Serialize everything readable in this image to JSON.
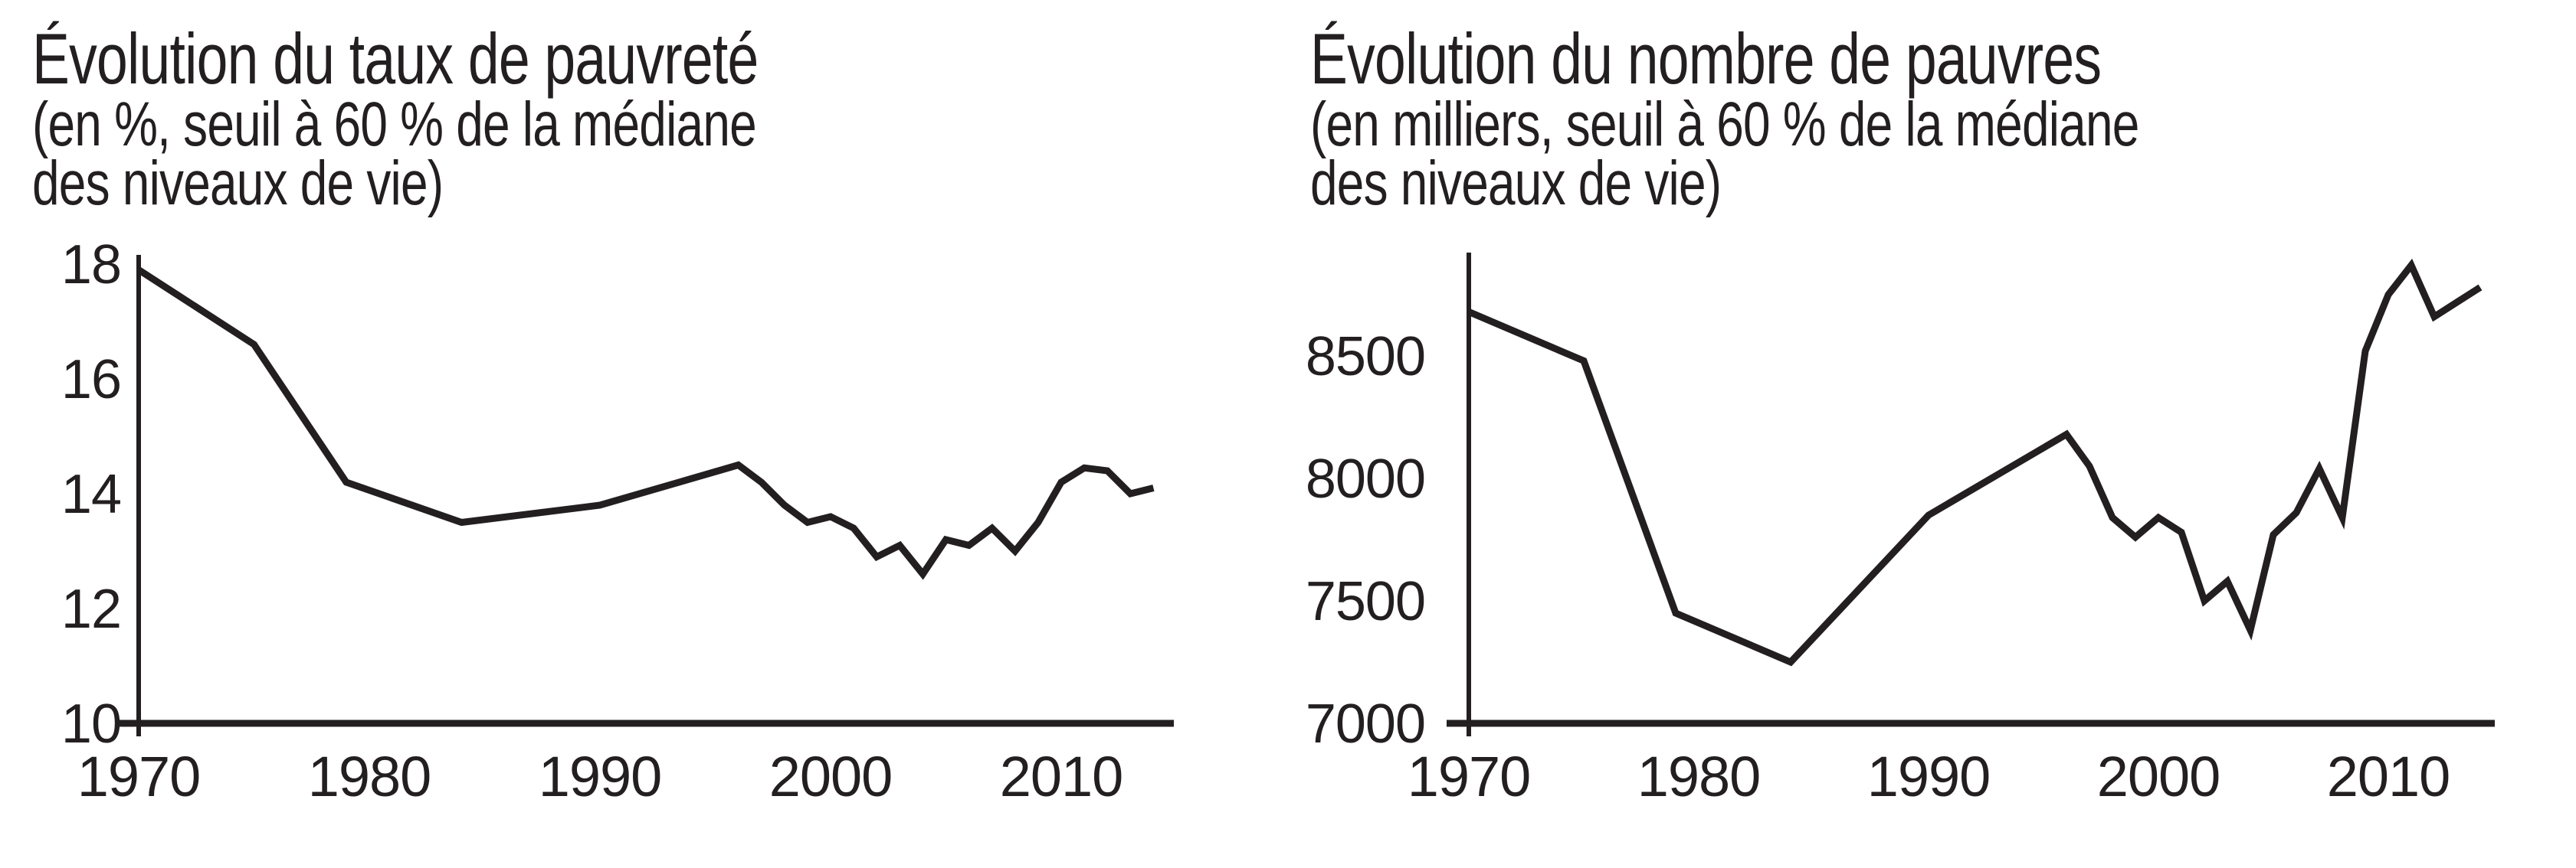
{
  "page": {
    "background": "#ffffff",
    "ink_color": "#231f20"
  },
  "chart_data": [
    {
      "type": "line",
      "title": "Évolution du taux de pauvreté",
      "subtitle_lines": [
        "(en %, seuil à 60 % de la médiane",
        "des niveaux de vie)"
      ],
      "x": [
        1970,
        1975,
        1979,
        1984,
        1990,
        1996,
        1997,
        1998,
        1999,
        2000,
        2001,
        2002,
        2003,
        2004,
        2005,
        2006,
        2007,
        2008,
        2009,
        2010,
        2011,
        2012,
        2013,
        2014
      ],
      "y": [
        17.9,
        16.6,
        14.2,
        13.5,
        13.8,
        14.5,
        14.2,
        13.8,
        13.5,
        13.6,
        13.4,
        12.9,
        13.1,
        12.6,
        13.2,
        13.1,
        13.4,
        13.0,
        13.5,
        14.2,
        14.45,
        14.4,
        14.0,
        14.1
      ],
      "xlabel": "",
      "ylabel": "",
      "ylim": [
        10,
        18.2
      ],
      "xlim": [
        1970,
        2015
      ],
      "yticks": [
        18,
        16,
        14,
        12,
        10
      ],
      "xticks": [
        1970,
        1980,
        1990,
        2000,
        2010
      ],
      "grid": false,
      "legend_position": "none",
      "line_color": "#231f20"
    },
    {
      "type": "line",
      "title": "Évolution du nombre de pauvres",
      "subtitle_lines": [
        "(en milliers, seuil à 60 % de la médiane",
        "des niveaux de vie)"
      ],
      "x": [
        1970,
        1975,
        1979,
        1984,
        1990,
        1996,
        1997,
        1998,
        1999,
        2000,
        2001,
        2002,
        2003,
        2004,
        2005,
        2006,
        2007,
        2008,
        2009,
        2010,
        2011,
        2012,
        2013,
        2014
      ],
      "y": [
        8680,
        8480,
        7450,
        7250,
        7850,
        8180,
        8050,
        7840,
        7760,
        7840,
        7780,
        7500,
        7580,
        7380,
        7770,
        7860,
        8040,
        7840,
        8520,
        8750,
        8870,
        8660,
        8720,
        8780
      ],
      "xlabel": "",
      "ylabel": "",
      "ylim": [
        7000,
        8920
      ],
      "xlim": [
        1970,
        2015
      ],
      "yticks": [
        8500,
        8000,
        7500,
        7000
      ],
      "xticks": [
        1970,
        1980,
        1990,
        2000,
        2010
      ],
      "grid": false,
      "legend_position": "none",
      "line_color": "#231f20"
    }
  ]
}
